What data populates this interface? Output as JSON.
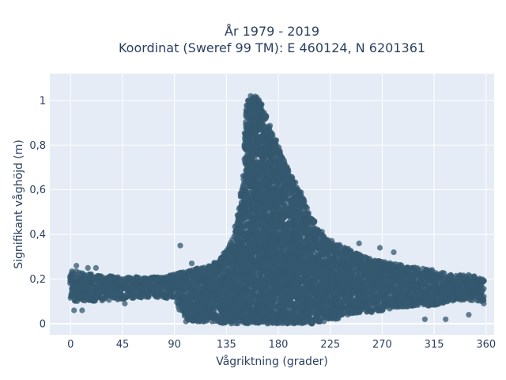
{
  "chart_data": {
    "type": "scatter",
    "title_line1": "År 1979 - 2019",
    "title_line2": "Koordinat (Sweref 99 TM): E 460124, N 6201361",
    "xlabel": "Vågriktning (grader)",
    "ylabel": "Signifikant våghöjd (m)",
    "xlim": [
      -18,
      367
    ],
    "ylim": [
      -0.05,
      1.12
    ],
    "xticks": [
      0,
      45,
      90,
      135,
      180,
      225,
      270,
      315,
      360
    ],
    "xtick_labels": [
      "0",
      "45",
      "90",
      "135",
      "180",
      "225",
      "270",
      "315",
      "360"
    ],
    "yticks": [
      0,
      0.2,
      0.4,
      0.6,
      0.8,
      1
    ],
    "ytick_labels": [
      "0",
      "0,2",
      "0,4",
      "0,6",
      "0,8",
      "1"
    ],
    "grid": true,
    "marker_color": "#34586f",
    "plot_background": "#e5ecf6",
    "density_envelope": {
      "x": [
        0,
        20,
        45,
        70,
        90,
        100,
        120,
        130,
        135,
        140,
        145,
        150,
        152,
        155,
        160,
        165,
        170,
        175,
        180,
        185,
        190,
        200,
        210,
        220,
        225,
        230,
        240,
        250,
        260,
        270,
        280,
        300,
        315,
        330,
        345,
        358
      ],
      "y_max": [
        0.24,
        0.22,
        0.21,
        0.21,
        0.22,
        0.24,
        0.26,
        0.29,
        0.33,
        0.38,
        0.48,
        0.68,
        0.98,
        1.02,
        1.03,
        1.0,
        0.93,
        0.86,
        0.79,
        0.73,
        0.68,
        0.58,
        0.47,
        0.39,
        0.38,
        0.36,
        0.34,
        0.31,
        0.29,
        0.28,
        0.27,
        0.25,
        0.24,
        0.22,
        0.22,
        0.2
      ],
      "y_min": [
        0.1,
        0.1,
        0.11,
        0.12,
        0.11,
        0.01,
        0.01,
        0.0,
        0.0,
        0.0,
        0.0,
        0.0,
        0.0,
        0.0,
        0.0,
        0.0,
        0.0,
        0.0,
        0.0,
        0.0,
        0.0,
        0.0,
        0.0,
        0.01,
        0.02,
        0.02,
        0.04,
        0.05,
        0.05,
        0.06,
        0.07,
        0.08,
        0.08,
        0.1,
        0.1,
        0.1
      ]
    }
  }
}
